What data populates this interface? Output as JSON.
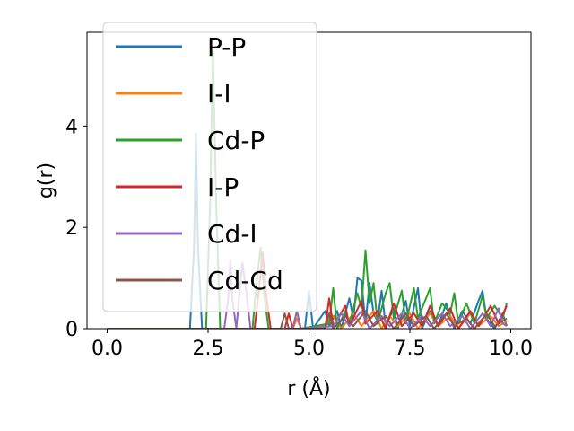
{
  "chart_data": {
    "type": "line",
    "xlabel": "r (Å)",
    "ylabel": "g(r)",
    "xlim": [
      -0.5,
      10.5
    ],
    "ylim": [
      0,
      5.85
    ],
    "xticks": [
      0.0,
      2.5,
      5.0,
      7.5,
      10.0
    ],
    "xtick_labels": [
      "0.0",
      "2.5",
      "5.0",
      "7.5",
      "10.0"
    ],
    "yticks": [
      0,
      2,
      4
    ],
    "ytick_labels": [
      "0",
      "2",
      "4"
    ],
    "grid": false,
    "legend_position": "top-left",
    "series": [
      {
        "name": "P-P",
        "color": "#1f77b4",
        "points": [
          [
            0,
            0
          ],
          [
            2.05,
            0
          ],
          [
            2.15,
            1.6
          ],
          [
            2.2,
            3.85
          ],
          [
            2.25,
            1.6
          ],
          [
            2.35,
            0
          ],
          [
            4.9,
            0
          ],
          [
            5.0,
            0.75
          ],
          [
            5.1,
            0
          ],
          [
            5.4,
            0.35
          ],
          [
            5.5,
            0.05
          ],
          [
            5.7,
            0.35
          ],
          [
            5.8,
            0
          ],
          [
            6.0,
            0.6
          ],
          [
            6.1,
            0.2
          ],
          [
            6.2,
            1.0
          ],
          [
            6.3,
            0.95
          ],
          [
            6.4,
            0.1
          ],
          [
            6.5,
            0.9
          ],
          [
            6.6,
            0.3
          ],
          [
            6.7,
            0.15
          ],
          [
            6.8,
            0.75
          ],
          [
            6.9,
            0.05
          ],
          [
            7.1,
            0.4
          ],
          [
            7.2,
            0.0
          ],
          [
            7.4,
            0.55
          ],
          [
            7.5,
            0.05
          ],
          [
            7.7,
            0.8
          ],
          [
            7.8,
            0.0
          ],
          [
            8.0,
            0.35
          ],
          [
            8.2,
            0.05
          ],
          [
            8.4,
            0.5
          ],
          [
            8.6,
            0.0
          ],
          [
            8.8,
            0.35
          ],
          [
            9.0,
            0.1
          ],
          [
            9.2,
            0.55
          ],
          [
            9.3,
            0.75
          ],
          [
            9.4,
            0.2
          ],
          [
            9.6,
            0.0
          ],
          [
            9.8,
            0.3
          ],
          [
            9.9,
            0.05
          ]
        ]
      },
      {
        "name": "I-I",
        "color": "#ff7f0e",
        "points": [
          [
            0,
            0
          ],
          [
            4.6,
            0
          ],
          [
            4.7,
            0.2
          ],
          [
            4.8,
            0
          ],
          [
            5.4,
            0.05
          ],
          [
            5.6,
            0.25
          ],
          [
            5.8,
            0.0
          ],
          [
            6.1,
            0.3
          ],
          [
            6.3,
            0.05
          ],
          [
            6.6,
            0.35
          ],
          [
            6.8,
            0.0
          ],
          [
            7.0,
            0.25
          ],
          [
            7.2,
            0.05
          ],
          [
            7.5,
            0.3
          ],
          [
            7.7,
            0.0
          ],
          [
            8.0,
            0.3
          ],
          [
            8.2,
            0.05
          ],
          [
            8.5,
            0.25
          ],
          [
            8.7,
            0.0
          ],
          [
            9.0,
            0.3
          ],
          [
            9.2,
            0.05
          ],
          [
            9.5,
            0.25
          ],
          [
            9.7,
            0.05
          ],
          [
            9.9,
            0.15
          ]
        ]
      },
      {
        "name": "Cd-P",
        "color": "#2ca02c",
        "points": [
          [
            0,
            0
          ],
          [
            2.45,
            0
          ],
          [
            2.55,
            2.5
          ],
          [
            2.62,
            5.5
          ],
          [
            2.7,
            2.5
          ],
          [
            2.8,
            0
          ],
          [
            3.6,
            0
          ],
          [
            3.7,
            0.9
          ],
          [
            3.8,
            1.6
          ],
          [
            3.9,
            0.6
          ],
          [
            4.0,
            0
          ],
          [
            4.6,
            0
          ],
          [
            4.7,
            0.35
          ],
          [
            4.8,
            0
          ],
          [
            5.5,
            0.1
          ],
          [
            5.6,
            0.8
          ],
          [
            5.7,
            0.0
          ],
          [
            5.9,
            0.35
          ],
          [
            6.0,
            0.1
          ],
          [
            6.2,
            0.7
          ],
          [
            6.3,
            0.4
          ],
          [
            6.4,
            1.55
          ],
          [
            6.5,
            0.5
          ],
          [
            6.6,
            0.9
          ],
          [
            6.7,
            0.1
          ],
          [
            6.9,
            0.7
          ],
          [
            7.0,
            0.9
          ],
          [
            7.1,
            0.2
          ],
          [
            7.3,
            0.75
          ],
          [
            7.4,
            0.1
          ],
          [
            7.6,
            0.8
          ],
          [
            7.7,
            0.2
          ],
          [
            7.9,
            0.6
          ],
          [
            8.0,
            0.8
          ],
          [
            8.1,
            0.1
          ],
          [
            8.3,
            0.5
          ],
          [
            8.5,
            0.3
          ],
          [
            8.6,
            0.7
          ],
          [
            8.7,
            0.1
          ],
          [
            8.9,
            0.5
          ],
          [
            9.1,
            0.1
          ],
          [
            9.3,
            0.65
          ],
          [
            9.4,
            0.2
          ],
          [
            9.6,
            0.45
          ],
          [
            9.8,
            0.2
          ],
          [
            9.9,
            0.5
          ]
        ]
      },
      {
        "name": "I-P",
        "color": "#d62728",
        "points": [
          [
            0,
            0
          ],
          [
            3.65,
            0
          ],
          [
            3.75,
            0.7
          ],
          [
            3.85,
            1.5
          ],
          [
            3.95,
            0.6
          ],
          [
            4.05,
            0
          ],
          [
            4.4,
            0
          ],
          [
            4.5,
            0.3
          ],
          [
            4.6,
            0
          ],
          [
            5.4,
            0
          ],
          [
            5.5,
            0.6
          ],
          [
            5.6,
            0.05
          ],
          [
            5.9,
            0.45
          ],
          [
            6.0,
            0.05
          ],
          [
            6.3,
            0.55
          ],
          [
            6.4,
            0.1
          ],
          [
            6.7,
            0.35
          ],
          [
            6.9,
            0.0
          ],
          [
            7.1,
            0.5
          ],
          [
            7.3,
            0.05
          ],
          [
            7.6,
            0.3
          ],
          [
            7.8,
            0.05
          ],
          [
            8.0,
            0.45
          ],
          [
            8.2,
            0.05
          ],
          [
            8.5,
            0.4
          ],
          [
            8.7,
            0.0
          ],
          [
            9.0,
            0.35
          ],
          [
            9.2,
            0.05
          ],
          [
            9.5,
            0.45
          ],
          [
            9.7,
            0.1
          ],
          [
            9.9,
            0.45
          ]
        ]
      },
      {
        "name": "Cd-I",
        "color": "#9467bd",
        "points": [
          [
            0,
            0
          ],
          [
            2.9,
            0
          ],
          [
            3.0,
            0.6
          ],
          [
            3.05,
            1.35
          ],
          [
            3.1,
            0.6
          ],
          [
            3.2,
            0
          ],
          [
            3.3,
            0.9
          ],
          [
            3.35,
            1.3
          ],
          [
            3.45,
            0.7
          ],
          [
            3.55,
            0
          ],
          [
            4.6,
            0
          ],
          [
            4.7,
            0.35
          ],
          [
            4.8,
            0
          ],
          [
            5.6,
            0.05
          ],
          [
            5.8,
            0.3
          ],
          [
            6.0,
            0.05
          ],
          [
            6.3,
            0.35
          ],
          [
            6.5,
            0.0
          ],
          [
            6.8,
            0.25
          ],
          [
            7.0,
            0.05
          ],
          [
            7.3,
            0.3
          ],
          [
            7.5,
            0.0
          ],
          [
            7.8,
            0.25
          ],
          [
            8.0,
            0.05
          ],
          [
            8.3,
            0.3
          ],
          [
            8.5,
            0.05
          ],
          [
            8.8,
            0.25
          ],
          [
            9.0,
            0.0
          ],
          [
            9.3,
            0.3
          ],
          [
            9.5,
            0.05
          ],
          [
            9.7,
            0.4
          ],
          [
            9.8,
            0.1
          ],
          [
            9.9,
            0.05
          ]
        ]
      },
      {
        "name": "Cd-Cd",
        "color": "#8c564b",
        "points": [
          [
            0,
            0
          ],
          [
            4.3,
            0
          ],
          [
            4.4,
            0.3
          ],
          [
            4.5,
            0
          ],
          [
            5.4,
            0
          ],
          [
            5.5,
            0.3
          ],
          [
            5.6,
            0.0
          ],
          [
            5.9,
            0.25
          ],
          [
            6.1,
            0.05
          ],
          [
            6.4,
            0.35
          ],
          [
            6.6,
            0.05
          ],
          [
            6.9,
            0.25
          ],
          [
            7.1,
            0.0
          ],
          [
            7.4,
            0.3
          ],
          [
            7.6,
            0.05
          ],
          [
            7.9,
            0.25
          ],
          [
            8.1,
            0.0
          ],
          [
            8.4,
            0.3
          ],
          [
            8.6,
            0.05
          ],
          [
            8.9,
            0.2
          ],
          [
            9.1,
            0.0
          ],
          [
            9.4,
            0.3
          ],
          [
            9.6,
            0.05
          ],
          [
            9.9,
            0.2
          ]
        ]
      }
    ]
  }
}
